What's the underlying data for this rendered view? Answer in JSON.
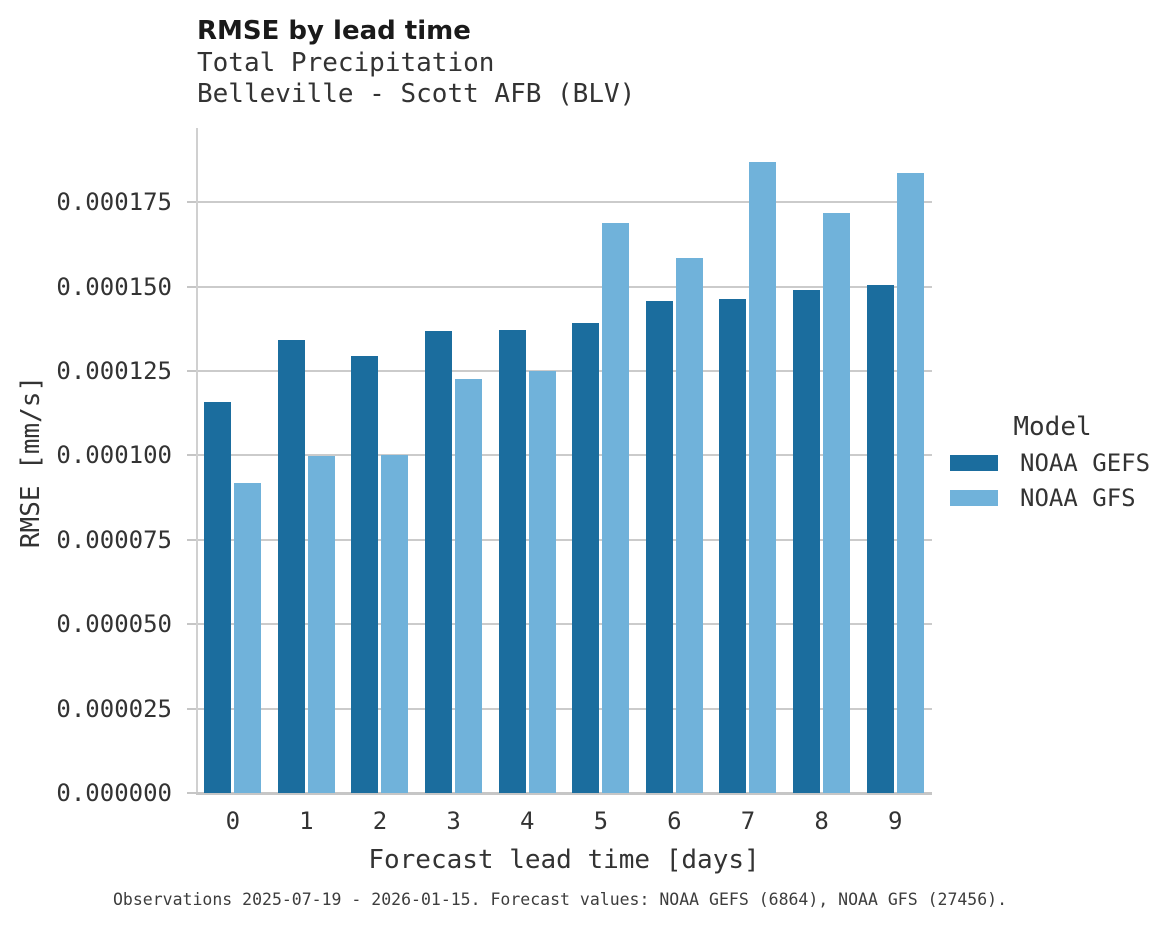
{
  "header": {
    "title": "RMSE by lead time",
    "subtitle_line1": "Total Precipitation",
    "subtitle_line2": "Belleville - Scott AFB (BLV)"
  },
  "legend": {
    "title": "Model",
    "items": [
      {
        "label": "NOAA GEFS",
        "color": "#1b6d9e"
      },
      {
        "label": "NOAA GFS",
        "color": "#70b2da"
      }
    ]
  },
  "caption": {
    "text": "Observations 2025-07-19 - 2026-01-15. Forecast values: NOAA GEFS (6864), NOAA GFS (27456)."
  },
  "colors": {
    "background": "#ffffff",
    "grid": "#cbcbcb",
    "axis_line": "#c6c6c6",
    "title_text": "#1a1a1a",
    "body_text": "#333333",
    "caption_text": "#3d3d3d",
    "series_dark": "#1b6d9e",
    "series_light": "#70b2da"
  },
  "chart_data": {
    "type": "bar",
    "title": "RMSE by lead time",
    "subtitle": [
      "Total Precipitation",
      "Belleville - Scott AFB (BLV)"
    ],
    "xlabel": "Forecast lead time [days]",
    "ylabel": "RMSE [mm/s]",
    "categories": [
      "0",
      "1",
      "2",
      "3",
      "4",
      "5",
      "6",
      "7",
      "8",
      "9"
    ],
    "series": [
      {
        "name": "NOAA GEFS",
        "color": "#1b6d9e",
        "values": [
          0.0001157,
          0.0001341,
          0.0001296,
          0.0001369,
          0.0001373,
          0.0001392,
          0.0001458,
          0.0001463,
          0.0001489,
          0.0001505
        ]
      },
      {
        "name": "NOAA GFS",
        "color": "#70b2da",
        "values": [
          9.19e-05,
          9.98e-05,
          0.0001,
          0.0001226,
          0.0001249,
          0.0001688,
          0.0001586,
          0.000187,
          0.0001718,
          0.0001836
        ]
      }
    ],
    "ylim": [
      0,
      0.000197
    ],
    "yticks": [
      0,
      2.5e-05,
      5e-05,
      7.5e-05,
      0.0001,
      0.000125,
      0.00015,
      0.000175
    ],
    "ytick_labels": [
      "0.000000",
      "0.000025",
      "0.000050",
      "0.000075",
      "0.000100",
      "0.000125",
      "0.000150",
      "0.000175"
    ],
    "grid": "horizontal-only",
    "legend_position": "right",
    "legend_title": "Model"
  }
}
